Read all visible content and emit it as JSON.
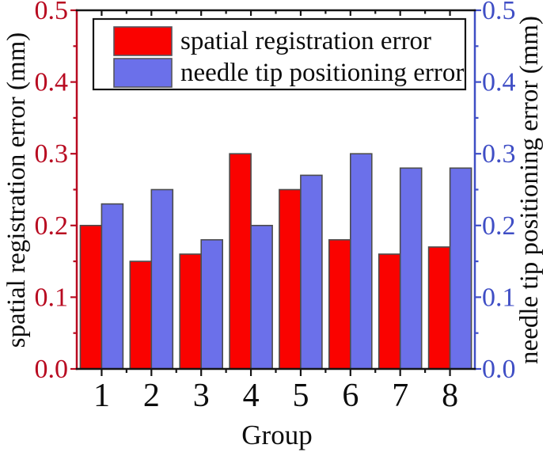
{
  "chart_data": {
    "type": "bar",
    "categories": [
      "1",
      "2",
      "3",
      "4",
      "5",
      "6",
      "7",
      "8"
    ],
    "series": [
      {
        "name": "spatial registration error",
        "axis": "left",
        "color": "#fa0200",
        "values": [
          0.2,
          0.15,
          0.16,
          0.3,
          0.25,
          0.18,
          0.16,
          0.17
        ]
      },
      {
        "name": "needle tip positioning error",
        "axis": "right",
        "color": "#6b70ea",
        "values": [
          0.23,
          0.25,
          0.18,
          0.2,
          0.27,
          0.3,
          0.28,
          0.28
        ]
      }
    ],
    "xlabel": "Group",
    "ylabel_left": "spatial registration error (mm)",
    "ylabel_right": "needle tip positioning error (mm)",
    "ylim": [
      0.0,
      0.5
    ],
    "ytick_labels": [
      "0.0",
      "0.1",
      "0.2",
      "0.3",
      "0.4",
      "0.5"
    ],
    "y_minor_step": 0.05,
    "grid": false,
    "legend_position": "top-inside",
    "axis_colors": {
      "left": "#b80a20",
      "right": "#3f4ec5",
      "top": "#151515",
      "bottom": "#151515"
    },
    "bar_outline_color": "#4d4d4d"
  }
}
